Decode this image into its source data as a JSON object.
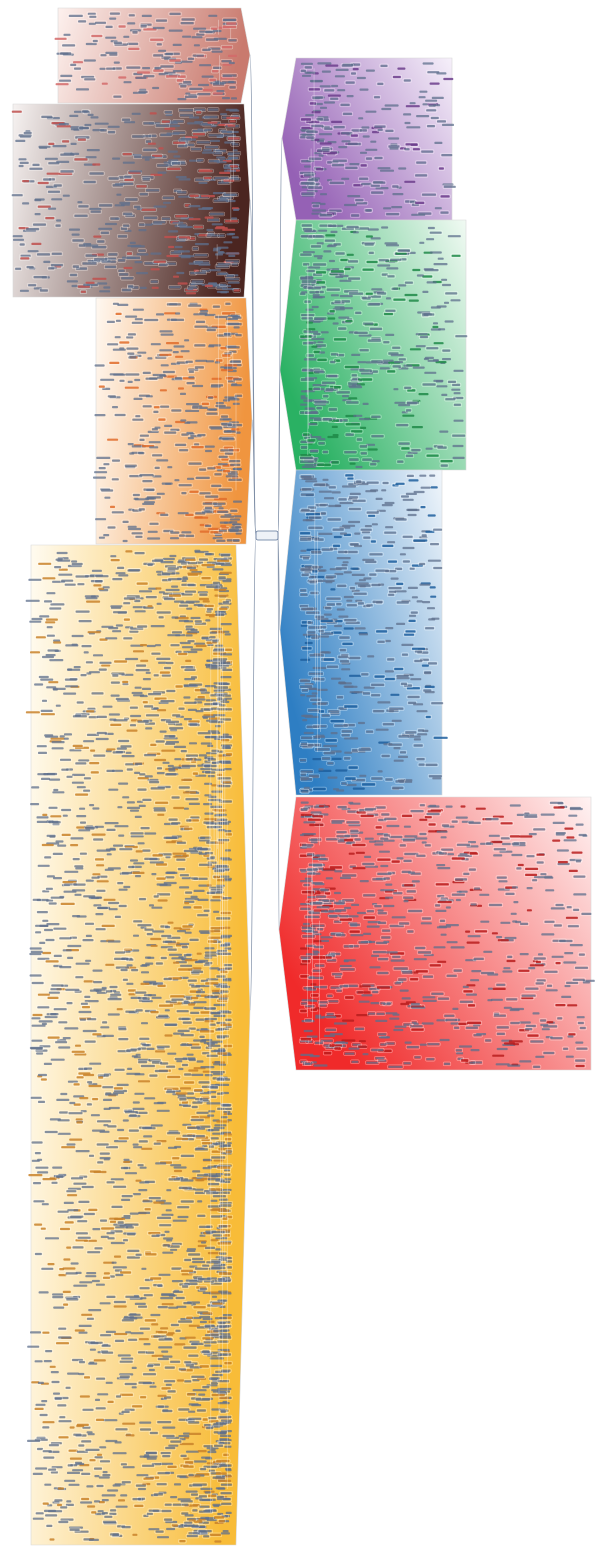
{
  "diagram": {
    "type": "mind-map",
    "central_topic": "",
    "branches": [
      {
        "side": "left",
        "color_start": "#fdf1ee",
        "color_end": "#c97a6e",
        "node_color": "#d46a6a",
        "density": 1.0
      },
      {
        "side": "left",
        "color_start": "#f6f2f1",
        "color_end": "#4b2520",
        "node_color": "#c0504d",
        "density": 1.2
      },
      {
        "side": "left",
        "color_start": "#fff8f1",
        "color_end": "#f0953f",
        "node_color": "#e06c2c",
        "density": 1.1
      },
      {
        "side": "left",
        "color_start": "#fffbf0",
        "color_end": "#f8bc38",
        "node_color": "#c9832a",
        "density": 1.3
      },
      {
        "side": "right",
        "color_start": "#f6f0fa",
        "color_end": "#9561b5",
        "node_color": "#6c3d8c",
        "density": 1.0
      },
      {
        "side": "right",
        "color_start": "#f1faf3",
        "color_end": "#2ab163",
        "node_color": "#1e8a48",
        "density": 1.1
      },
      {
        "side": "right",
        "color_start": "#f1f6fb",
        "color_end": "#2e7ec3",
        "node_color": "#1f5f9e",
        "density": 1.1
      },
      {
        "side": "right",
        "color_start": "#fff3f3",
        "color_end": "#f02a2a",
        "node_color": "#b81d1d",
        "density": 1.0
      }
    ]
  }
}
